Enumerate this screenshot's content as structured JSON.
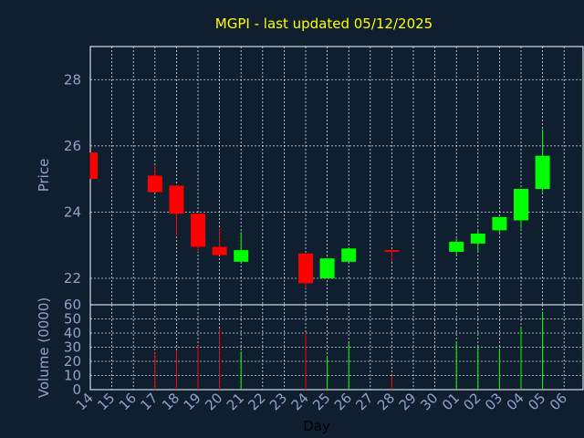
{
  "chart_data": {
    "type": "candlestick",
    "title": "MGPI - last updated 05/12/2025",
    "xlabel": "Day",
    "price_panel": {
      "ylabel": "Price",
      "ylim": [
        21.2,
        29.0
      ],
      "yticks": [
        22,
        24,
        26,
        28
      ]
    },
    "volume_panel": {
      "ylabel": "Volume (0000)",
      "ylim": [
        0,
        60
      ],
      "yticks": [
        0,
        10,
        20,
        30,
        40,
        50,
        60
      ]
    },
    "x_tick_labels": [
      "14",
      "15",
      "16",
      "17",
      "18",
      "19",
      "20",
      "21",
      "22",
      "23",
      "24",
      "25",
      "26",
      "27",
      "28",
      "29",
      "30",
      "01",
      "02",
      "03",
      "04",
      "05",
      "06"
    ],
    "colors": {
      "up": "#00ff00",
      "down": "#ff0000",
      "background": "#0f1f30",
      "grid": "#ffffff",
      "title": "#ffff00",
      "axis_text": "#8fa3c7"
    },
    "candles": [
      {
        "x": 14,
        "open": 25.8,
        "close": 25.0,
        "high": 25.8,
        "low": 25.0,
        "volume": 0
      },
      {
        "x": 17,
        "open": 25.1,
        "close": 24.6,
        "high": 25.4,
        "low": 24.6,
        "volume": 26
      },
      {
        "x": 18,
        "open": 24.8,
        "close": 23.95,
        "high": 24.8,
        "low": 23.3,
        "volume": 28
      },
      {
        "x": 19,
        "open": 23.95,
        "close": 22.95,
        "high": 23.95,
        "low": 22.8,
        "volume": 31
      },
      {
        "x": 20,
        "open": 22.95,
        "close": 22.7,
        "high": 23.5,
        "low": 22.7,
        "volume": 43
      },
      {
        "x": 21,
        "open": 22.5,
        "close": 22.85,
        "high": 23.4,
        "low": 22.5,
        "volume": 27
      },
      {
        "x": 24,
        "open": 22.75,
        "close": 21.85,
        "high": 22.75,
        "low": 21.7,
        "volume": 40
      },
      {
        "x": 25,
        "open": 22.0,
        "close": 22.6,
        "high": 22.6,
        "low": 22.0,
        "volume": 24
      },
      {
        "x": 26,
        "open": 22.5,
        "close": 22.9,
        "high": 22.9,
        "low": 22.5,
        "volume": 33
      },
      {
        "x": 28,
        "open": 22.85,
        "close": 22.8,
        "high": 22.85,
        "low": 22.5,
        "volume": 10
      },
      {
        "x": 31,
        "open": 22.8,
        "close": 23.1,
        "high": 23.2,
        "low": 22.7,
        "volume": 34
      },
      {
        "x": 32,
        "open": 23.05,
        "close": 23.35,
        "high": 23.45,
        "low": 22.8,
        "volume": 30
      },
      {
        "x": 33,
        "open": 23.45,
        "close": 23.85,
        "high": 23.85,
        "low": 23.35,
        "volume": 29
      },
      {
        "x": 34,
        "open": 23.75,
        "close": 24.7,
        "high": 24.7,
        "low": 23.5,
        "volume": 44
      },
      {
        "x": 35,
        "open": 24.7,
        "close": 25.7,
        "high": 26.5,
        "low": 24.6,
        "volume": 55
      }
    ]
  }
}
